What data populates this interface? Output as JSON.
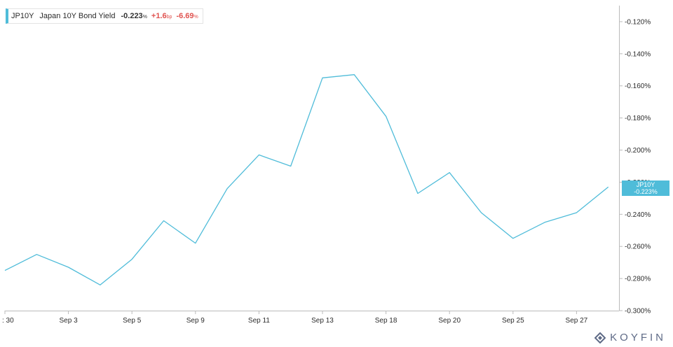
{
  "legend": {
    "ticker": "JP10Y",
    "name": "Japan 10Y Bond Yield",
    "value": "-0.223",
    "value_unit": "%",
    "change_bp": "+1.6",
    "change_bp_unit": "bp",
    "change_pct": "-6.69",
    "change_pct_unit": "%"
  },
  "price_tag": {
    "ticker": "JP10Y",
    "value": "-0.223%"
  },
  "brand": {
    "name": "KOYFIN",
    "icon": "koyfin-logo-icon"
  },
  "colors": {
    "line": "#4fbcd9",
    "negative": "#e0524f",
    "axis": "#bbbbbb",
    "brand": "#5e6a86"
  },
  "chart_data": {
    "type": "line",
    "title": "",
    "xlabel": "",
    "ylabel": "",
    "ylim": [
      -0.3,
      -0.11
    ],
    "grid": false,
    "y_axis_position": "right",
    "x_tick_labels": [
      ": 30",
      "Sep 3",
      "Sep 5",
      "Sep 9",
      "Sep 11",
      "Sep 13",
      "Sep 18",
      "Sep 20",
      "Sep 25",
      "Sep 27"
    ],
    "y_ticks": [
      -0.12,
      -0.14,
      -0.16,
      -0.18,
      -0.2,
      -0.22,
      -0.24,
      -0.26,
      -0.28,
      -0.3
    ],
    "y_tick_labels": [
      "-0.120%",
      "-0.140%",
      "-0.160%",
      "-0.180%",
      "-0.200%",
      "-0.220%",
      "-0.240%",
      "-0.260%",
      "-0.280%",
      "-0.300%"
    ],
    "series": [
      {
        "name": "JP10Y",
        "x": [
          "Aug 30",
          "Sep 2",
          "Sep 3",
          "Sep 4",
          "Sep 5",
          "Sep 6",
          "Sep 9",
          "Sep 10",
          "Sep 11",
          "Sep 12",
          "Sep 13",
          "Sep 17",
          "Sep 18",
          "Sep 19",
          "Sep 20",
          "Sep 24",
          "Sep 25",
          "Sep 26",
          "Sep 27",
          "Sep 30"
        ],
        "values": [
          -0.275,
          -0.265,
          -0.273,
          -0.284,
          -0.268,
          -0.244,
          -0.258,
          -0.224,
          -0.203,
          -0.21,
          -0.155,
          -0.153,
          -0.179,
          -0.227,
          -0.214,
          -0.239,
          -0.255,
          -0.245,
          -0.239,
          -0.223
        ]
      }
    ]
  }
}
